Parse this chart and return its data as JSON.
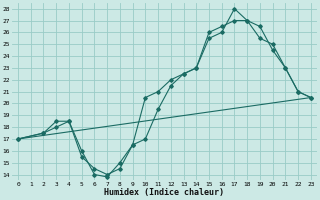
{
  "xlabel": "Humidex (Indice chaleur)",
  "bg_color": "#cce9e5",
  "grid_color": "#99ccc7",
  "line_color": "#1a6b63",
  "xlim": [
    -0.5,
    23.5
  ],
  "ylim": [
    13.5,
    28.5
  ],
  "xticks": [
    0,
    1,
    2,
    3,
    4,
    5,
    6,
    7,
    8,
    9,
    10,
    11,
    12,
    13,
    14,
    15,
    16,
    17,
    18,
    19,
    20,
    21,
    22,
    23
  ],
  "yticks": [
    14,
    15,
    16,
    17,
    18,
    19,
    20,
    21,
    22,
    23,
    24,
    25,
    26,
    27,
    28
  ],
  "line1_x": [
    0,
    2,
    3,
    4,
    5,
    6,
    7,
    8,
    9,
    10,
    11,
    12,
    13,
    14,
    15,
    16,
    17,
    18,
    19,
    20,
    21,
    22,
    23
  ],
  "line1_y": [
    17.0,
    17.5,
    18.0,
    18.5,
    16.0,
    14.0,
    13.8,
    15.0,
    16.5,
    17.0,
    19.5,
    21.5,
    22.5,
    23.0,
    25.5,
    26.0,
    28.0,
    27.0,
    26.5,
    24.5,
    23.0,
    21.0,
    20.5
  ],
  "line2_x": [
    0,
    2,
    3,
    4,
    5,
    6,
    7,
    8,
    9,
    10,
    11,
    12,
    13,
    14,
    15,
    16,
    17,
    18,
    19,
    20,
    21,
    22,
    23
  ],
  "line2_y": [
    17.0,
    17.5,
    18.5,
    18.5,
    15.5,
    14.5,
    14.0,
    14.5,
    16.5,
    20.5,
    21.0,
    22.0,
    22.5,
    23.0,
    26.0,
    26.5,
    27.0,
    27.0,
    25.5,
    25.0,
    23.0,
    21.0,
    20.5
  ],
  "line3_x": [
    0,
    23
  ],
  "line3_y": [
    17.0,
    20.5
  ]
}
